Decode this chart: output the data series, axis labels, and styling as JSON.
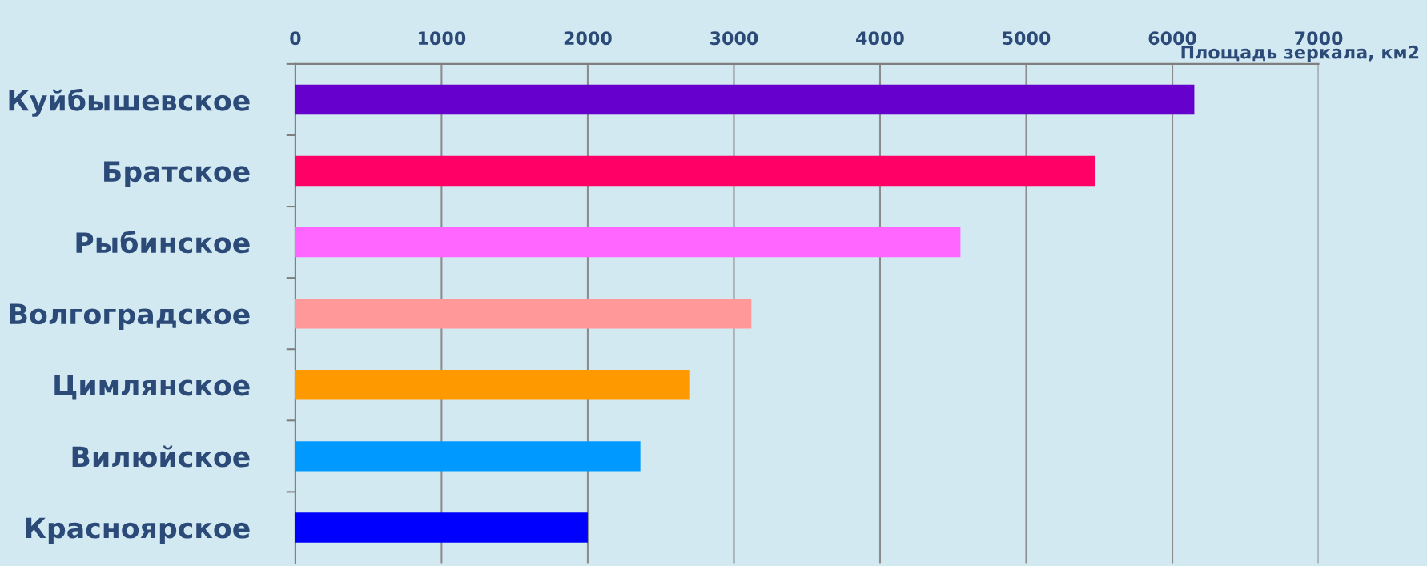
{
  "chart_data": {
    "type": "bar",
    "orientation": "horizontal",
    "xlabel": "Площадь зеркала, км2",
    "categories": [
      "Куйбышевское",
      "Братское",
      "Рыбинское",
      "Волгоградское",
      "Цимлянское",
      "Вилюйское",
      "Красноярское"
    ],
    "values": [
      6150,
      5470,
      4550,
      3120,
      2700,
      2360,
      2000
    ],
    "colors": [
      "#6600cc",
      "#ff0066",
      "#ff66ff",
      "#ff9999",
      "#ff9900",
      "#0099ff",
      "#0000ff"
    ],
    "xlim": [
      0,
      7000
    ],
    "xticks": [
      0,
      1000,
      2000,
      3000,
      4000,
      5000,
      6000,
      7000
    ],
    "grid": "x",
    "legend": false
  }
}
